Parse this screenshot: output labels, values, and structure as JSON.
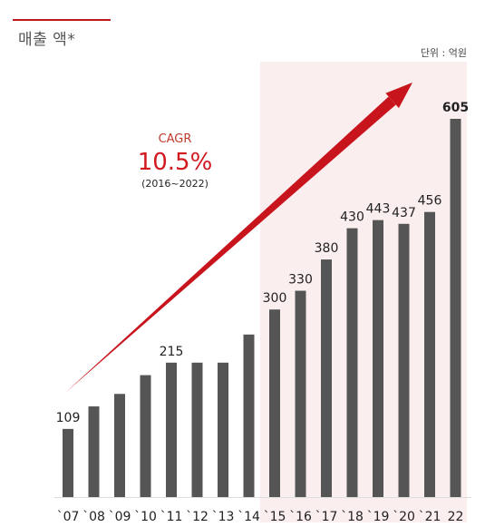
{
  "header": {
    "title": "매출 액*",
    "unit": "단위 : 억원"
  },
  "cagr": {
    "label": "CAGR",
    "value": "10.5%",
    "period": "(2016~2022)"
  },
  "colors": {
    "bar": "#555555",
    "highlight_band": "#fbeeee",
    "arrow": "#c8141c",
    "accent_rule": "#c0171f"
  },
  "chart_data": {
    "type": "bar",
    "title": "매출 액*",
    "xlabel": "",
    "ylabel": "",
    "ylim": [
      0,
      650
    ],
    "grid": false,
    "categories": [
      "`07",
      "`08",
      "`09",
      "`10",
      "`11",
      "`12",
      "`13",
      "`14",
      "`15",
      "`16",
      "`17",
      "`18",
      "`19",
      "`20",
      "`21",
      "22"
    ],
    "series": [
      {
        "values": [
          109,
          145,
          165,
          195,
          215,
          215,
          215,
          260,
          300,
          330,
          380,
          430,
          443,
          437,
          456,
          605
        ]
      }
    ],
    "data_labels": [
      "109",
      "",
      "",
      "",
      "215",
      "",
      "",
      "",
      "300",
      "330",
      "380",
      "430",
      "443",
      "437",
      "456",
      "605"
    ],
    "highlight_range": [
      "`15",
      "22"
    ],
    "bold_label_category": "22"
  }
}
